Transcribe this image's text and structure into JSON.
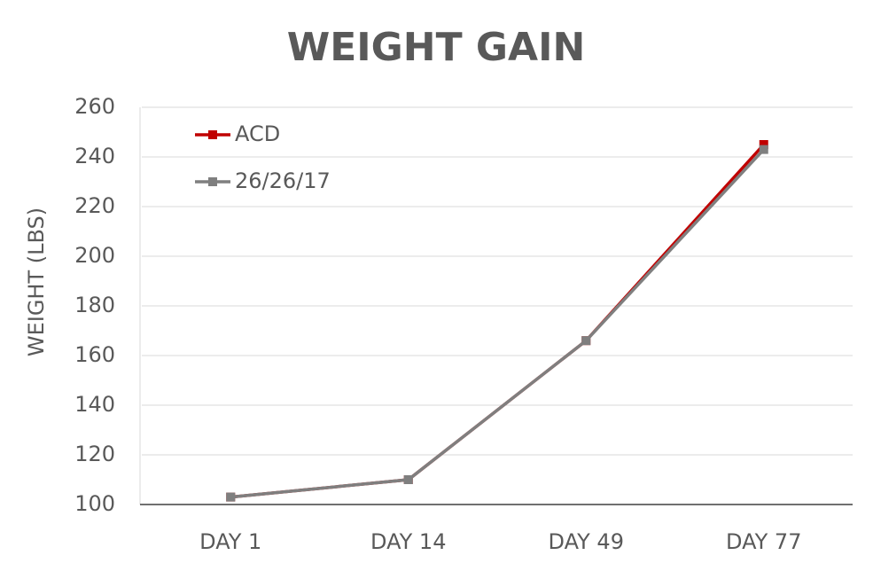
{
  "chart_data": {
    "type": "line",
    "title": "WEIGHT GAIN",
    "y_label": "WEIGHT (LBS)",
    "categories": [
      "DAY 1",
      "DAY 14",
      "DAY 49",
      "DAY 77"
    ],
    "series": [
      {
        "name": "ACD",
        "color": "#c00000",
        "values": [
          103,
          110,
          166,
          245
        ]
      },
      {
        "name": "26/26/17",
        "color": "#7f7f7f",
        "values": [
          103,
          110,
          166,
          243
        ]
      }
    ],
    "ylim": [
      100,
      260
    ],
    "yticks": [
      100,
      120,
      140,
      160,
      180,
      200,
      220,
      240,
      260
    ],
    "grid": true,
    "legend": "upper left"
  }
}
